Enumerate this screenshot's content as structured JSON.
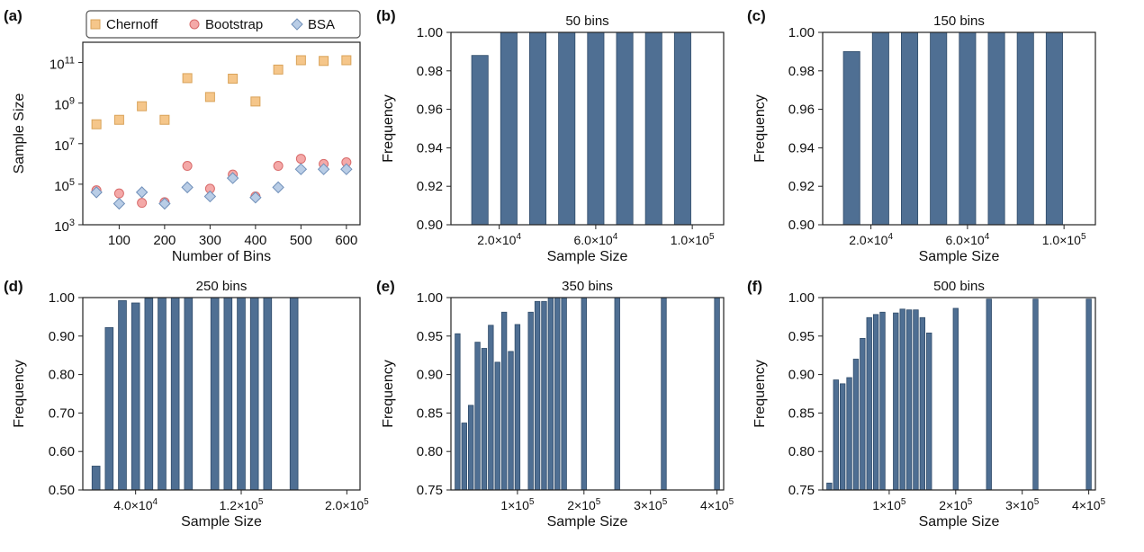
{
  "colors": {
    "chernoff": "#f5c68a",
    "chernoff_edge": "#d9a35a",
    "bootstrap": "#f4a9a8",
    "bootstrap_edge": "#d86a6a",
    "bsa": "#b9cde6",
    "bsa_edge": "#6f8fb9",
    "bar": "#4f6f93",
    "bar_edge": "#2f4b69"
  },
  "chart_data": [
    {
      "id": "a",
      "panel_label": "(a)",
      "type": "scatter",
      "title": "",
      "xlabel": "Number of Bins",
      "ylabel": "Sample Size",
      "xscale": "linear",
      "yscale": "log",
      "xlim": [
        20,
        630
      ],
      "ylim": [
        1000,
        1000000000000
      ],
      "xticks": [
        100,
        200,
        300,
        400,
        500,
        600
      ],
      "xtick_labels": [
        "100",
        "200",
        "300",
        "400",
        "500",
        "600"
      ],
      "yticks": [
        1000,
        100000,
        10000000,
        1000000000,
        100000000000
      ],
      "ytick_labels": [
        {
          "base": "10",
          "exp": "3"
        },
        {
          "base": "10",
          "exp": "5"
        },
        {
          "base": "10",
          "exp": "7"
        },
        {
          "base": "10",
          "exp": "9"
        },
        {
          "base": "10",
          "exp": "11"
        }
      ],
      "legend": {
        "position": "top",
        "entries": [
          "Chernoff",
          "Bootstrap",
          "BSA"
        ]
      },
      "series": [
        {
          "name": "Chernoff",
          "marker": "square",
          "x": [
            50,
            100,
            150,
            200,
            250,
            300,
            350,
            400,
            450,
            500,
            550,
            600
          ],
          "y": [
            90000000,
            150000000,
            700000000,
            150000000,
            17000000000,
            2000000000,
            16000000000,
            1200000000,
            45000000000,
            130000000000,
            120000000000,
            130000000000
          ]
        },
        {
          "name": "Bootstrap",
          "marker": "circle",
          "x": [
            50,
            100,
            150,
            200,
            250,
            300,
            350,
            400,
            450,
            500,
            550,
            600
          ],
          "y": [
            50000,
            35000,
            12000,
            13000,
            800000,
            60000,
            300000,
            25000,
            800000,
            1800000,
            1000000,
            1200000
          ]
        },
        {
          "name": "BSA",
          "marker": "diamond",
          "x": [
            50,
            100,
            150,
            200,
            250,
            300,
            350,
            400,
            450,
            500,
            550,
            600
          ],
          "y": [
            40000,
            11000,
            40000,
            11000,
            70000,
            25000,
            200000,
            22000,
            70000,
            550000,
            550000,
            550000
          ]
        }
      ]
    },
    {
      "id": "b",
      "panel_label": "(b)",
      "type": "bar",
      "title": "50 bins",
      "xlabel": "Sample Size",
      "ylabel": "Frequency",
      "xlim": [
        0,
        113000
      ],
      "ylim": [
        0.9,
        1.0
      ],
      "bar_width": 6800,
      "xticks": [
        20000,
        60000,
        100000
      ],
      "xtick_labels": [
        {
          "mant": "2.0×10",
          "exp": "4"
        },
        {
          "mant": "6.0×10",
          "exp": "4"
        },
        {
          "mant": "1.0×10",
          "exp": "5"
        }
      ],
      "yticks": [
        0.9,
        0.92,
        0.94,
        0.96,
        0.98,
        1.0
      ],
      "ytick_labels": [
        "0.90",
        "0.92",
        "0.94",
        "0.96",
        "0.98",
        "1.00"
      ],
      "x": [
        12000,
        24000,
        36000,
        48000,
        60000,
        72000,
        84000,
        96000
      ],
      "values": [
        0.988,
        1.0,
        1.0,
        1.0,
        1.0,
        1.0,
        1.0,
        1.0
      ]
    },
    {
      "id": "c",
      "panel_label": "(c)",
      "type": "bar",
      "title": "150 bins",
      "xlabel": "Sample Size",
      "ylabel": "Frequency",
      "xlim": [
        0,
        113000
      ],
      "ylim": [
        0.9,
        1.0
      ],
      "bar_width": 6800,
      "xticks": [
        20000,
        60000,
        100000
      ],
      "xtick_labels": [
        {
          "mant": "2.0×10",
          "exp": "4"
        },
        {
          "mant": "6.0×10",
          "exp": "4"
        },
        {
          "mant": "1.0×10",
          "exp": "5"
        }
      ],
      "yticks": [
        0.9,
        0.92,
        0.94,
        0.96,
        0.98,
        1.0
      ],
      "ytick_labels": [
        "0.90",
        "0.92",
        "0.94",
        "0.96",
        "0.98",
        "1.00"
      ],
      "x": [
        12000,
        24000,
        36000,
        48000,
        60000,
        72000,
        84000,
        96000
      ],
      "values": [
        0.99,
        1.0,
        1.0,
        1.0,
        1.0,
        1.0,
        1.0,
        1.0
      ]
    },
    {
      "id": "d",
      "panel_label": "(d)",
      "type": "bar",
      "title": "250 bins",
      "xlabel": "Sample Size",
      "ylabel": "Frequency",
      "xlim": [
        0,
        210000
      ],
      "ylim": [
        0.5,
        1.0
      ],
      "bar_width": 6000,
      "xticks": [
        40000,
        120000,
        200000
      ],
      "xtick_labels": [
        {
          "mant": "4.0×10",
          "exp": "4"
        },
        {
          "mant": "1.2×10",
          "exp": "5"
        },
        {
          "mant": "2.0×10",
          "exp": "5"
        }
      ],
      "yticks": [
        0.5,
        0.6,
        0.7,
        0.8,
        0.9,
        1.0
      ],
      "ytick_labels": [
        "0.50",
        "0.60",
        "0.70",
        "0.80",
        "0.90",
        "1.00"
      ],
      "x": [
        10000,
        20000,
        30000,
        40000,
        50000,
        60000,
        70000,
        80000,
        100000,
        110000,
        120000,
        130000,
        140000,
        160000
      ],
      "values": [
        0.562,
        0.922,
        0.992,
        0.986,
        0.998,
        1.0,
        1.0,
        1.0,
        1.0,
        1.0,
        1.0,
        1.0,
        1.0,
        1.0
      ]
    },
    {
      "id": "e",
      "panel_label": "(e)",
      "type": "bar",
      "title": "350 bins",
      "xlabel": "Sample Size",
      "ylabel": "Frequency",
      "xlim": [
        0,
        410000
      ],
      "ylim": [
        0.75,
        1.0
      ],
      "bar_width": 7500,
      "xticks": [
        100000,
        200000,
        300000,
        400000
      ],
      "xtick_labels": [
        {
          "mant": "1×10",
          "exp": "5"
        },
        {
          "mant": "2×10",
          "exp": "5"
        },
        {
          "mant": "3×10",
          "exp": "5"
        },
        {
          "mant": "4×10",
          "exp": "5"
        }
      ],
      "yticks": [
        0.75,
        0.8,
        0.85,
        0.9,
        0.95,
        1.0
      ],
      "ytick_labels": [
        "0.75",
        "0.80",
        "0.85",
        "0.90",
        "0.95",
        "1.00"
      ],
      "x": [
        10000,
        20000,
        30000,
        40000,
        50000,
        60000,
        70000,
        80000,
        90000,
        100000,
        120000,
        130000,
        140000,
        150000,
        160000,
        170000,
        200000,
        250000,
        320000,
        400000
      ],
      "values": [
        0.953,
        0.837,
        0.86,
        0.942,
        0.934,
        0.964,
        0.916,
        0.981,
        0.93,
        0.965,
        0.981,
        0.995,
        0.995,
        1.0,
        1.0,
        1.0,
        1.0,
        1.0,
        1.0,
        1.0
      ]
    },
    {
      "id": "f",
      "panel_label": "(f)",
      "type": "bar",
      "title": "500 bins",
      "xlabel": "Sample Size",
      "ylabel": "Frequency",
      "xlim": [
        0,
        410000
      ],
      "ylim": [
        0.75,
        1.0
      ],
      "bar_width": 7500,
      "xticks": [
        100000,
        200000,
        300000,
        400000
      ],
      "xtick_labels": [
        {
          "mant": "1×10",
          "exp": "5"
        },
        {
          "mant": "2×10",
          "exp": "5"
        },
        {
          "mant": "3×10",
          "exp": "5"
        },
        {
          "mant": "4×10",
          "exp": "5"
        }
      ],
      "yticks": [
        0.75,
        0.8,
        0.85,
        0.9,
        0.95,
        1.0
      ],
      "ytick_labels": [
        "0.75",
        "0.80",
        "0.85",
        "0.90",
        "0.95",
        "1.00"
      ],
      "x": [
        10000,
        20000,
        30000,
        40000,
        50000,
        60000,
        70000,
        80000,
        90000,
        110000,
        120000,
        130000,
        140000,
        150000,
        160000,
        200000,
        250000,
        320000,
        400000
      ],
      "values": [
        0.759,
        0.893,
        0.888,
        0.896,
        0.92,
        0.947,
        0.974,
        0.978,
        0.981,
        0.98,
        0.985,
        0.984,
        0.984,
        0.974,
        0.954,
        0.986,
        0.998,
        0.998,
        0.998
      ]
    }
  ]
}
